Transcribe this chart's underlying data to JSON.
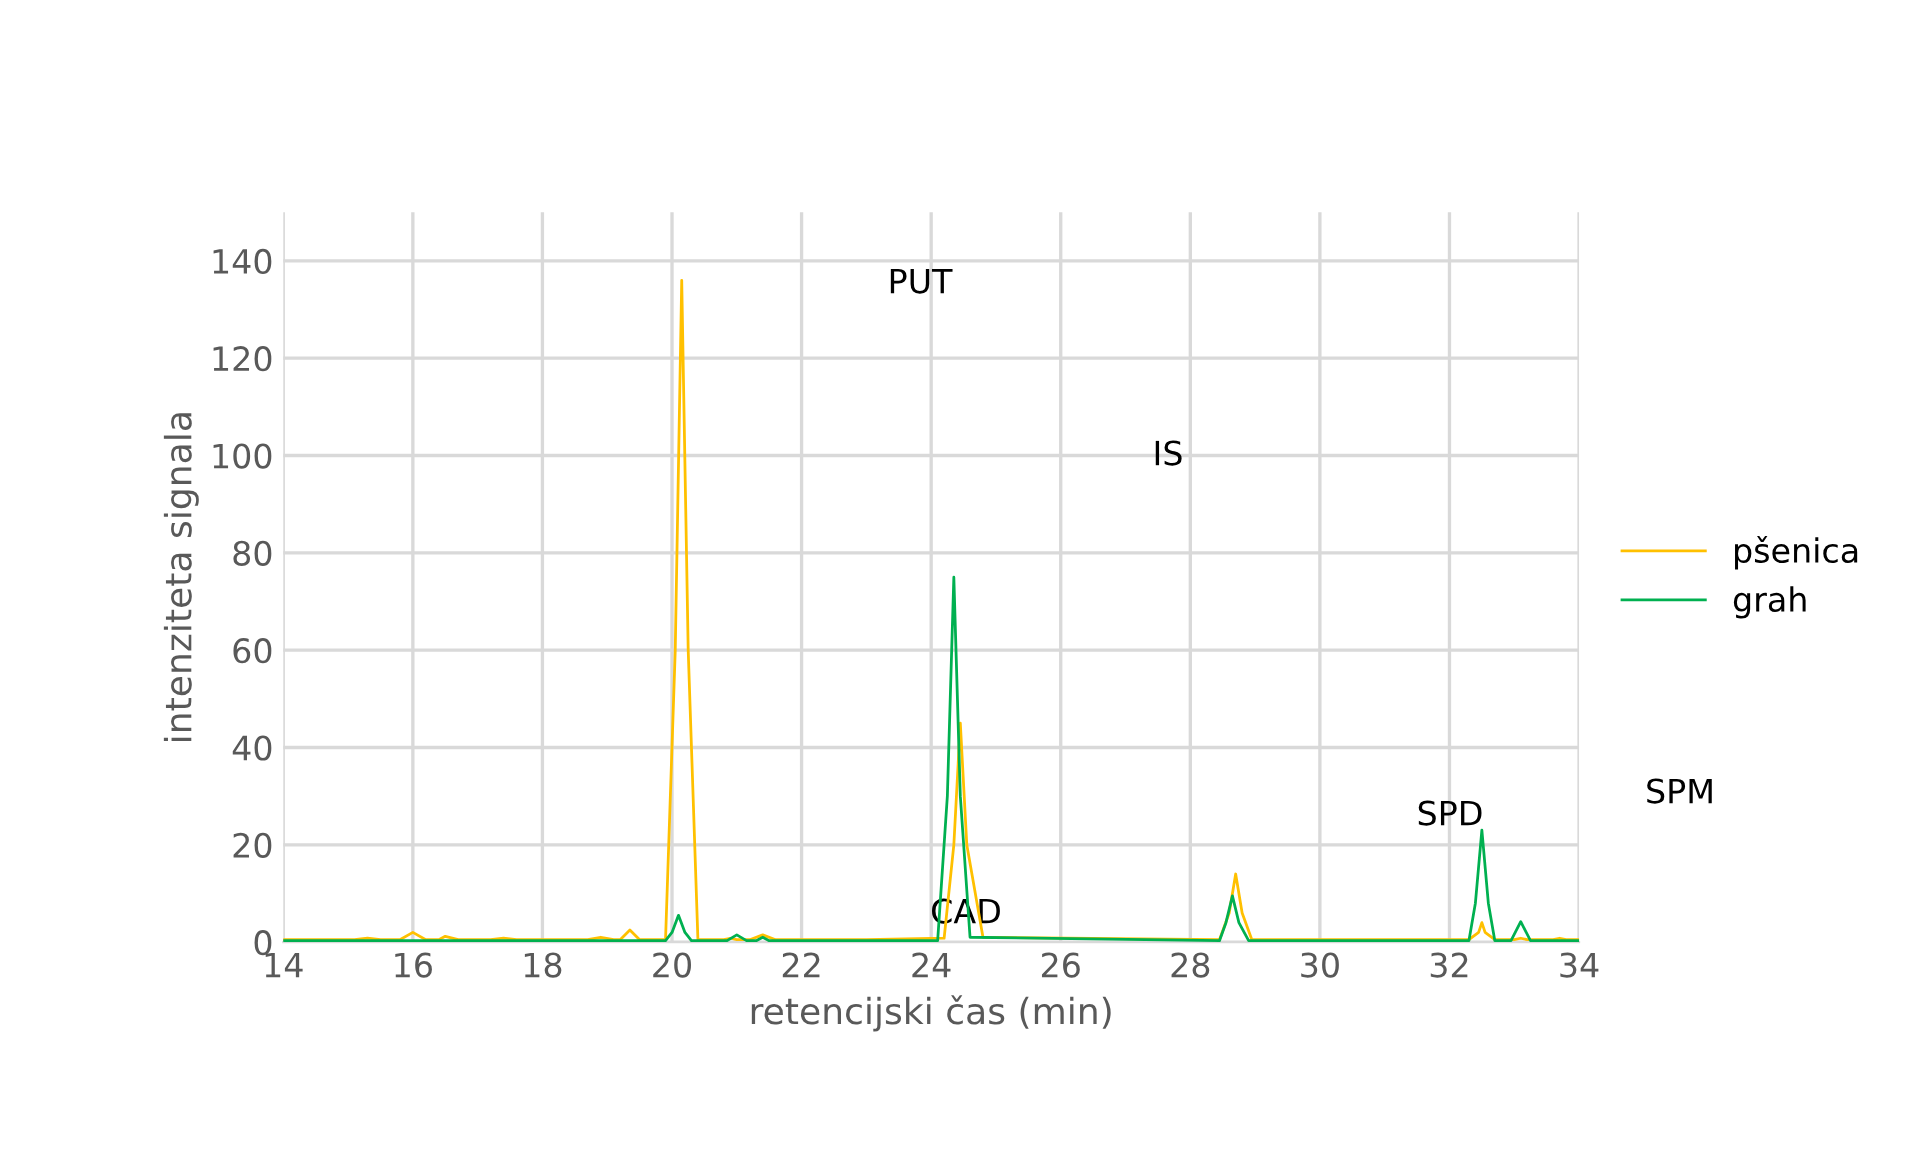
{
  "chart_data": {
    "type": "line",
    "xlabel": "retencijski čas (min)",
    "ylabel": "intenziteta signala",
    "xlim": [
      14,
      34
    ],
    "xticks": [
      14,
      16,
      18,
      20,
      22,
      24,
      26,
      28,
      30,
      32,
      34
    ],
    "ylim": [
      0,
      150
    ],
    "yticks": [
      0,
      20,
      40,
      60,
      80,
      100,
      120,
      140
    ],
    "grid": true,
    "legend": "right",
    "marker": "none",
    "line_style": "solid",
    "series": [
      {
        "name": "pšenica",
        "color": "#ffc000",
        "x": [
          14,
          15.1,
          15.3,
          15.5,
          15.8,
          16.0,
          16.2,
          16.4,
          16.5,
          16.7,
          17.2,
          17.4,
          17.6,
          18.7,
          18.9,
          19.1,
          19.2,
          19.35,
          19.5,
          19.9,
          20.05,
          20.15,
          20.25,
          20.4,
          20.8,
          20.9,
          21.0,
          21.2,
          21.4,
          21.6,
          23.0,
          24.2,
          24.35,
          24.45,
          24.55,
          24.8,
          28.45,
          28.6,
          28.7,
          28.8,
          28.95,
          32.3,
          32.45,
          32.5,
          32.55,
          32.7,
          33.0,
          33.1,
          33.2,
          33.6,
          33.7,
          33.8,
          34
        ],
        "values": [
          0.5,
          0.5,
          0.8,
          0.5,
          0.5,
          2,
          0.5,
          0.5,
          1.2,
          0.5,
          0.5,
          0.8,
          0.5,
          0.5,
          1,
          0.5,
          0.5,
          2.5,
          0.5,
          0.5,
          60,
          136,
          60,
          0.5,
          0.5,
          0.8,
          0.5,
          0.5,
          1.5,
          0.5,
          0.5,
          0.8,
          20,
          45,
          20,
          1,
          0.5,
          6,
          14,
          6,
          0.5,
          0.5,
          2,
          4,
          2,
          0.5,
          0.5,
          0.8,
          0.5,
          0.5,
          0.8,
          0.5,
          0.5
        ]
      },
      {
        "name": "grah",
        "color": "#00b050",
        "x": [
          14,
          19.9,
          20.0,
          20.1,
          20.2,
          20.3,
          20.85,
          21.0,
          21.15,
          21.3,
          21.4,
          21.5,
          24.1,
          24.25,
          24.35,
          24.45,
          24.6,
          28.45,
          28.55,
          28.65,
          28.75,
          28.9,
          32.3,
          32.4,
          32.5,
          32.6,
          32.7,
          32.95,
          33.1,
          33.25,
          34
        ],
        "values": [
          0.3,
          0.3,
          2,
          5.5,
          2,
          0.3,
          0.3,
          1.5,
          0.3,
          0.3,
          1,
          0.3,
          0.3,
          30,
          75,
          30,
          1,
          0.3,
          4,
          9.5,
          4,
          0.3,
          0.3,
          8,
          23,
          8,
          0.3,
          0.3,
          4.2,
          0.3,
          0.3
        ]
      }
    ],
    "annotations": [
      "PUT",
      "IS",
      "CAD",
      "SPD",
      "SPM"
    ]
  }
}
